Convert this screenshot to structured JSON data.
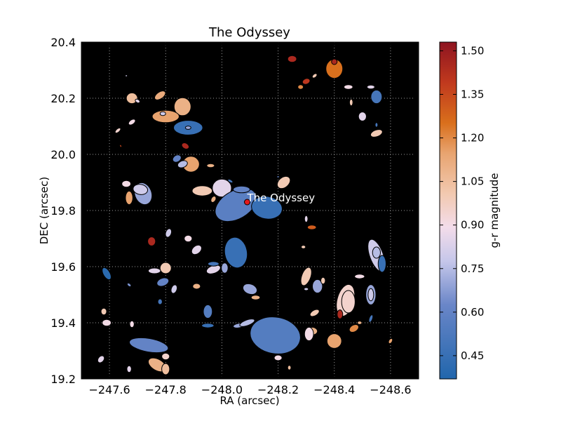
{
  "chart_data": {
    "type": "scatter",
    "title": "The Odyssey",
    "xlabel": "RA (arcsec)",
    "ylabel": "DEC (arcsec)",
    "colorbar_label": "g-r magnitude",
    "xlim": [
      -247.5,
      -248.7
    ],
    "ylim": [
      19.2,
      20.4
    ],
    "x_ticks": [
      -247.6,
      -247.8,
      -248.0,
      -248.2,
      -248.4,
      -248.6
    ],
    "x_tick_labels": [
      "−247.6",
      "−247.8",
      "−248.0",
      "−248.2",
      "−248.4",
      "−248.6"
    ],
    "y_ticks": [
      19.2,
      19.4,
      19.6,
      19.8,
      20.0,
      20.2,
      20.4
    ],
    "y_tick_labels": [
      "19.2",
      "19.4",
      "19.6",
      "19.8",
      "20.0",
      "20.2",
      "20.4"
    ],
    "colorbar_ticks": [
      0.45,
      0.6,
      0.75,
      0.9,
      1.05,
      1.2,
      1.35,
      1.5
    ],
    "colorbar_tick_labels": [
      "0.45",
      "0.60",
      "0.75",
      "0.90",
      "1.05",
      "1.20",
      "1.35",
      "1.50"
    ],
    "colorbar_range": [
      0.37,
      1.53
    ],
    "grid": true,
    "background": "#000000",
    "colormap": "blue-white-orange-red",
    "annotation": {
      "text": "The Odyssey",
      "ra": -248.09,
      "dec": 19.83,
      "marker_color": "#e31a1c"
    },
    "sources": [
      {
        "ra": -247.66,
        "dec": 20.28,
        "a": 0.004,
        "b": 0.002,
        "angle": 0,
        "gr": 0.8
      },
      {
        "ra": -247.68,
        "dec": 20.2,
        "a": 0.02,
        "b": 0.019,
        "angle": 0,
        "gr": 1.05
      },
      {
        "ra": -247.7,
        "dec": 20.19,
        "a": 0.009,
        "b": 0.006,
        "angle": 30,
        "gr": 0.85
      },
      {
        "ra": -247.78,
        "dec": 20.21,
        "a": 0.022,
        "b": 0.012,
        "angle": -35,
        "gr": 1.12
      },
      {
        "ra": -247.86,
        "dec": 20.17,
        "a": 0.03,
        "b": 0.032,
        "angle": 0,
        "gr": 1.1
      },
      {
        "ra": -247.8,
        "dec": 20.135,
        "a": 0.048,
        "b": 0.022,
        "angle": 0,
        "gr": 1.15
      },
      {
        "ra": -247.79,
        "dec": 20.145,
        "a": 0.01,
        "b": 0.007,
        "angle": 0,
        "gr": 0.8
      },
      {
        "ra": -247.68,
        "dec": 20.115,
        "a": 0.014,
        "b": 0.008,
        "angle": -35,
        "gr": 0.9
      },
      {
        "ra": -247.63,
        "dec": 20.085,
        "a": 0.012,
        "b": 0.006,
        "angle": -40,
        "gr": 0.95
      },
      {
        "ra": -247.88,
        "dec": 20.095,
        "a": 0.052,
        "b": 0.026,
        "angle": 0,
        "gr": 0.45
      },
      {
        "ra": -247.88,
        "dec": 20.095,
        "a": 0.01,
        "b": 0.006,
        "angle": 0,
        "gr": 0.7
      },
      {
        "ra": -247.64,
        "dec": 20.03,
        "a": 0.005,
        "b": 0.003,
        "angle": 60,
        "gr": 1.35
      },
      {
        "ra": -247.87,
        "dec": 20.03,
        "a": 0.014,
        "b": 0.01,
        "angle": 30,
        "gr": 1.45
      },
      {
        "ra": -247.89,
        "dec": 19.965,
        "a": 0.03,
        "b": 0.028,
        "angle": 0,
        "gr": 1.15
      },
      {
        "ra": -247.84,
        "dec": 19.985,
        "a": 0.016,
        "b": 0.012,
        "angle": -30,
        "gr": 0.6
      },
      {
        "ra": -247.86,
        "dec": 19.965,
        "a": 0.018,
        "b": 0.012,
        "angle": -20,
        "gr": 0.75
      },
      {
        "ra": -247.96,
        "dec": 19.96,
        "a": 0.014,
        "b": 0.007,
        "angle": 0,
        "gr": 1.1
      },
      {
        "ra": -247.66,
        "dec": 19.895,
        "a": 0.016,
        "b": 0.012,
        "angle": 0,
        "gr": 0.9
      },
      {
        "ra": -247.72,
        "dec": 19.86,
        "a": 0.03,
        "b": 0.04,
        "angle": -20,
        "gr": 0.7
      },
      {
        "ra": -247.71,
        "dec": 19.875,
        "a": 0.026,
        "b": 0.018,
        "angle": 10,
        "gr": 0.8
      },
      {
        "ra": -247.67,
        "dec": 19.845,
        "a": 0.013,
        "b": 0.024,
        "angle": 0,
        "gr": 1.15
      },
      {
        "ra": -247.93,
        "dec": 19.87,
        "a": 0.036,
        "b": 0.018,
        "angle": 0,
        "gr": 1.0
      },
      {
        "ra": -248.0,
        "dec": 19.88,
        "a": 0.034,
        "b": 0.032,
        "angle": 0,
        "gr": 0.85
      },
      {
        "ra": -247.97,
        "dec": 19.84,
        "a": 0.008,
        "b": 0.012,
        "angle": 30,
        "gr": 1.1
      },
      {
        "ra": -248.05,
        "dec": 19.82,
        "a": 0.08,
        "b": 0.05,
        "angle": -30,
        "gr": 0.57
      },
      {
        "ra": -248.07,
        "dec": 19.875,
        "a": 0.03,
        "b": 0.012,
        "angle": 0,
        "gr": 0.6
      },
      {
        "ra": -248.03,
        "dec": 19.905,
        "a": 0.01,
        "b": 0.005,
        "angle": 30,
        "gr": 0.5
      },
      {
        "ra": -248.16,
        "dec": 19.81,
        "a": 0.055,
        "b": 0.04,
        "angle": 10,
        "gr": 0.45
      },
      {
        "ra": -248.22,
        "dec": 19.9,
        "a": 0.026,
        "b": 0.018,
        "angle": -40,
        "gr": 1.0
      },
      {
        "ra": -248.2,
        "dec": 19.92,
        "a": 0.005,
        "b": 0.003,
        "angle": 0,
        "gr": 0.6
      },
      {
        "ra": -247.81,
        "dec": 19.72,
        "a": 0.01,
        "b": 0.016,
        "angle": 20,
        "gr": 0.8
      },
      {
        "ra": -247.75,
        "dec": 19.69,
        "a": 0.014,
        "b": 0.016,
        "angle": 0,
        "gr": 1.45
      },
      {
        "ra": -247.88,
        "dec": 19.7,
        "a": 0.014,
        "b": 0.012,
        "angle": 0,
        "gr": 0.9
      },
      {
        "ra": -247.91,
        "dec": 19.66,
        "a": 0.02,
        "b": 0.014,
        "angle": -40,
        "gr": 0.85
      },
      {
        "ra": -248.05,
        "dec": 19.65,
        "a": 0.04,
        "b": 0.055,
        "angle": -10,
        "gr": 0.45
      },
      {
        "ra": -248.01,
        "dec": 19.595,
        "a": 0.012,
        "b": 0.018,
        "angle": 0,
        "gr": 0.7
      },
      {
        "ra": -247.97,
        "dec": 19.59,
        "a": 0.026,
        "b": 0.014,
        "angle": -20,
        "gr": 0.85
      },
      {
        "ra": -247.97,
        "dec": 19.61,
        "a": 0.02,
        "b": 0.008,
        "angle": 0,
        "gr": 0.5
      },
      {
        "ra": -247.59,
        "dec": 19.575,
        "a": 0.012,
        "b": 0.024,
        "angle": -30,
        "gr": 0.4
      },
      {
        "ra": -247.67,
        "dec": 19.535,
        "a": 0.008,
        "b": 0.005,
        "angle": 40,
        "gr": 0.65
      },
      {
        "ra": -247.76,
        "dec": 19.585,
        "a": 0.022,
        "b": 0.01,
        "angle": 0,
        "gr": 0.85
      },
      {
        "ra": -247.8,
        "dec": 19.595,
        "a": 0.02,
        "b": 0.02,
        "angle": 0,
        "gr": 1.0
      },
      {
        "ra": -247.79,
        "dec": 19.545,
        "a": 0.022,
        "b": 0.014,
        "angle": -20,
        "gr": 0.6
      },
      {
        "ra": -247.83,
        "dec": 19.52,
        "a": 0.01,
        "b": 0.016,
        "angle": 20,
        "gr": 0.8
      },
      {
        "ra": -247.91,
        "dec": 19.53,
        "a": 0.014,
        "b": 0.01,
        "angle": 0,
        "gr": 1.1
      },
      {
        "ra": -247.78,
        "dec": 19.475,
        "a": 0.008,
        "b": 0.01,
        "angle": 0,
        "gr": 0.5
      },
      {
        "ra": -247.95,
        "dec": 19.44,
        "a": 0.016,
        "b": 0.024,
        "angle": 0,
        "gr": 0.55
      },
      {
        "ra": -248.1,
        "dec": 19.52,
        "a": 0.026,
        "b": 0.018,
        "angle": 20,
        "gr": 0.7
      },
      {
        "ra": -248.12,
        "dec": 19.49,
        "a": 0.016,
        "b": 0.008,
        "angle": 0,
        "gr": 1.1
      },
      {
        "ra": -247.58,
        "dec": 19.44,
        "a": 0.01,
        "b": 0.012,
        "angle": 0,
        "gr": 1.0
      },
      {
        "ra": -247.59,
        "dec": 19.4,
        "a": 0.016,
        "b": 0.012,
        "angle": 0,
        "gr": 0.9
      },
      {
        "ra": -247.68,
        "dec": 19.395,
        "a": 0.008,
        "b": 0.012,
        "angle": 0,
        "gr": 0.9
      },
      {
        "ra": -247.95,
        "dec": 19.39,
        "a": 0.022,
        "b": 0.008,
        "angle": 0,
        "gr": 0.45
      },
      {
        "ra": -248.06,
        "dec": 19.39,
        "a": 0.02,
        "b": 0.008,
        "angle": -10,
        "gr": 0.7
      },
      {
        "ra": -248.09,
        "dec": 19.4,
        "a": 0.028,
        "b": 0.01,
        "angle": -20,
        "gr": 0.75
      },
      {
        "ra": -248.19,
        "dec": 19.355,
        "a": 0.09,
        "b": 0.065,
        "angle": 10,
        "gr": 0.55
      },
      {
        "ra": -247.74,
        "dec": 19.32,
        "a": 0.07,
        "b": 0.024,
        "angle": 10,
        "gr": 0.6
      },
      {
        "ra": -247.77,
        "dec": 19.25,
        "a": 0.035,
        "b": 0.02,
        "angle": 30,
        "gr": 1.1
      },
      {
        "ra": -247.8,
        "dec": 19.28,
        "a": 0.014,
        "b": 0.012,
        "angle": 0,
        "gr": 0.95
      },
      {
        "ra": -247.8,
        "dec": 19.235,
        "a": 0.014,
        "b": 0.02,
        "angle": 0,
        "gr": 1.05
      },
      {
        "ra": -247.57,
        "dec": 19.27,
        "a": 0.01,
        "b": 0.014,
        "angle": 40,
        "gr": 0.85
      },
      {
        "ra": -247.67,
        "dec": 19.235,
        "a": 0.008,
        "b": 0.012,
        "angle": 0,
        "gr": 0.85
      },
      {
        "ra": -248.2,
        "dec": 19.275,
        "a": 0.014,
        "b": 0.01,
        "angle": 0,
        "gr": 0.9
      },
      {
        "ra": -248.24,
        "dec": 19.24,
        "a": 0.006,
        "b": 0.008,
        "angle": 0,
        "gr": 1.05
      },
      {
        "ra": -248.25,
        "dec": 20.34,
        "a": 0.016,
        "b": 0.012,
        "angle": 0,
        "gr": 1.45
      },
      {
        "ra": -248.4,
        "dec": 20.305,
        "a": 0.03,
        "b": 0.034,
        "angle": 0,
        "gr": 1.25
      },
      {
        "ra": -248.4,
        "dec": 20.33,
        "a": 0.01,
        "b": 0.01,
        "angle": 0,
        "gr": 1.45
      },
      {
        "ra": -248.3,
        "dec": 20.26,
        "a": 0.014,
        "b": 0.01,
        "angle": -20,
        "gr": 1.4
      },
      {
        "ra": -248.33,
        "dec": 20.28,
        "a": 0.01,
        "b": 0.006,
        "angle": -40,
        "gr": 1.0
      },
      {
        "ra": -248.28,
        "dec": 20.24,
        "a": 0.01,
        "b": 0.008,
        "angle": 0,
        "gr": 1.2
      },
      {
        "ra": -248.45,
        "dec": 20.24,
        "a": 0.016,
        "b": 0.008,
        "angle": 0,
        "gr": 0.9
      },
      {
        "ra": -248.53,
        "dec": 20.24,
        "a": 0.014,
        "b": 0.007,
        "angle": 0,
        "gr": 0.85
      },
      {
        "ra": -248.55,
        "dec": 20.205,
        "a": 0.02,
        "b": 0.024,
        "angle": 0,
        "gr": 0.5
      },
      {
        "ra": -248.46,
        "dec": 20.185,
        "a": 0.006,
        "b": 0.012,
        "angle": 0,
        "gr": 1.0
      },
      {
        "ra": -248.5,
        "dec": 20.135,
        "a": 0.014,
        "b": 0.016,
        "angle": 0,
        "gr": 0.85
      },
      {
        "ra": -248.55,
        "dec": 20.105,
        "a": 0.005,
        "b": 0.008,
        "angle": 0,
        "gr": 0.5
      },
      {
        "ra": -248.55,
        "dec": 20.075,
        "a": 0.022,
        "b": 0.012,
        "angle": -20,
        "gr": 1.0
      },
      {
        "ra": -248.3,
        "dec": 19.77,
        "a": 0.006,
        "b": 0.012,
        "angle": 0,
        "gr": 0.85
      },
      {
        "ra": -248.32,
        "dec": 19.74,
        "a": 0.016,
        "b": 0.008,
        "angle": 0,
        "gr": 1.3
      },
      {
        "ra": -248.29,
        "dec": 19.67,
        "a": 0.008,
        "b": 0.006,
        "angle": 0,
        "gr": 1.0
      },
      {
        "ra": -248.55,
        "dec": 19.64,
        "a": 0.024,
        "b": 0.06,
        "angle": -20,
        "gr": 0.8
      },
      {
        "ra": -248.55,
        "dec": 19.65,
        "a": 0.014,
        "b": 0.02,
        "angle": 0,
        "gr": 0.75
      },
      {
        "ra": -248.57,
        "dec": 19.61,
        "a": 0.014,
        "b": 0.03,
        "angle": 0,
        "gr": 0.45
      },
      {
        "ra": -248.3,
        "dec": 19.565,
        "a": 0.016,
        "b": 0.034,
        "angle": 20,
        "gr": 1.0
      },
      {
        "ra": -248.49,
        "dec": 19.565,
        "a": 0.018,
        "b": 0.008,
        "angle": 0,
        "gr": 0.9
      },
      {
        "ra": -248.34,
        "dec": 19.53,
        "a": 0.018,
        "b": 0.024,
        "angle": 0,
        "gr": 0.7
      },
      {
        "ra": -248.36,
        "dec": 19.55,
        "a": 0.008,
        "b": 0.012,
        "angle": 0,
        "gr": 1.0
      },
      {
        "ra": -248.3,
        "dec": 19.52,
        "a": 0.008,
        "b": 0.005,
        "angle": 0,
        "gr": 0.8
      },
      {
        "ra": -248.44,
        "dec": 19.48,
        "a": 0.03,
        "b": 0.058,
        "angle": 15,
        "gr": 0.95
      },
      {
        "ra": -248.45,
        "dec": 19.475,
        "a": 0.024,
        "b": 0.04,
        "angle": 0,
        "gr": 0.95
      },
      {
        "ra": -248.53,
        "dec": 19.5,
        "a": 0.018,
        "b": 0.036,
        "angle": 0,
        "gr": 0.7
      },
      {
        "ra": -248.53,
        "dec": 19.5,
        "a": 0.01,
        "b": 0.022,
        "angle": 0,
        "gr": 0.8
      },
      {
        "ra": -248.33,
        "dec": 19.435,
        "a": 0.018,
        "b": 0.01,
        "angle": -30,
        "gr": 1.0
      },
      {
        "ra": -248.42,
        "dec": 19.43,
        "a": 0.01,
        "b": 0.016,
        "angle": 0,
        "gr": 1.45
      },
      {
        "ra": -248.53,
        "dec": 19.415,
        "a": 0.006,
        "b": 0.014,
        "angle": 20,
        "gr": 0.5
      },
      {
        "ra": -248.47,
        "dec": 19.38,
        "a": 0.018,
        "b": 0.012,
        "angle": -30,
        "gr": 1.2
      },
      {
        "ra": -248.49,
        "dec": 19.4,
        "a": 0.008,
        "b": 0.006,
        "angle": 0,
        "gr": 1.1
      },
      {
        "ra": -248.32,
        "dec": 19.37,
        "a": 0.02,
        "b": 0.014,
        "angle": 0,
        "gr": 1.1
      },
      {
        "ra": -248.31,
        "dec": 19.36,
        "a": 0.016,
        "b": 0.024,
        "angle": 0,
        "gr": 0.9
      },
      {
        "ra": -248.4,
        "dec": 19.335,
        "a": 0.026,
        "b": 0.026,
        "angle": 0,
        "gr": 1.15
      },
      {
        "ra": -248.6,
        "dec": 19.335,
        "a": 0.006,
        "b": 0.01,
        "angle": 30,
        "gr": 1.15
      }
    ]
  }
}
